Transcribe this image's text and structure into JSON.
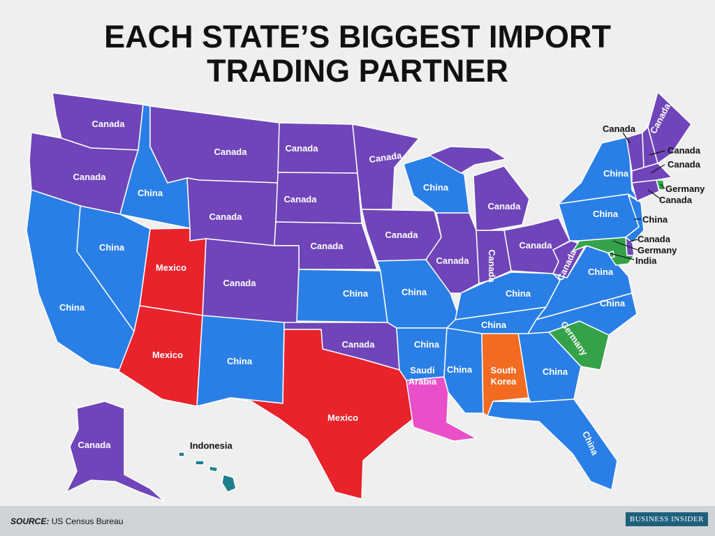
{
  "title_line1": "EACH STATE’S BIGGEST IMPORT",
  "title_line2": "TRADING PARTNER",
  "partner_colors": {
    "Canada": "#6f45b9",
    "China": "#2a7fe6",
    "Mexico": "#e8232b",
    "Germany": "#35a249",
    "South Korea": "#f26b21",
    "Saudi Arabia": "#e94fc9",
    "India": "#35a249",
    "Indonesia": "#1f7f8d"
  },
  "labels": [
    "Canada",
    "Canada",
    "China",
    "Canada",
    "Canada",
    "Canada",
    "Canada",
    "Canada",
    "China",
    "Canada",
    "Canada",
    "Canada",
    "Canada",
    "Canada",
    "Canada",
    "China",
    "Mexico",
    "Canada",
    "China",
    "China",
    "China",
    "Canada",
    "China",
    "China",
    "China",
    "China",
    "Mexico",
    "China",
    "Canada",
    "China",
    "China",
    "South",
    "Korea",
    "China",
    "Germany",
    "Saudi",
    "Arabia",
    "Mexico",
    "China",
    "Canada",
    "Indonesia",
    "Canada",
    "China",
    "China",
    "Canada",
    "Canada",
    "Canada",
    "Germany",
    "Canada",
    "China",
    "Canada",
    "Germany",
    "India"
  ],
  "footer": {
    "source_label": "SOURCE:",
    "source_text": "US Census Bureau",
    "brand": "BUSINESS INSIDER"
  }
}
